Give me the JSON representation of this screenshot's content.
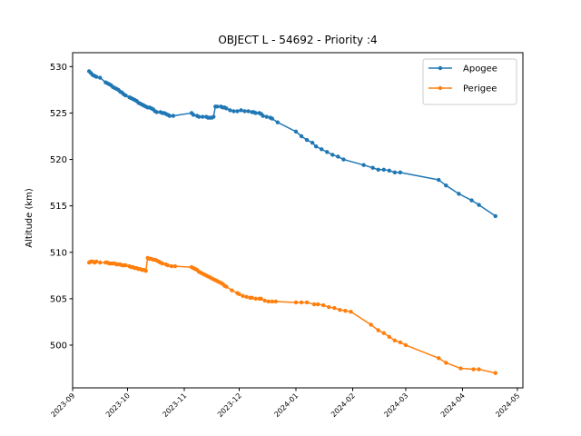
{
  "chart_data": {
    "type": "line",
    "title": "OBJECT L - 54692 - Priority :4",
    "xlabel": "",
    "ylabel": "Altitude (km)",
    "xlim": [
      "2023-09-01",
      "2024-05-04"
    ],
    "ylim": [
      495.4,
      531.5
    ],
    "x_ticks": [
      "2023-09",
      "2023-10",
      "2023-11",
      "2023-12",
      "2024-01",
      "2024-02",
      "2024-03",
      "2024-04",
      "2024-05"
    ],
    "y_ticks": [
      500,
      505,
      510,
      515,
      520,
      525,
      530
    ],
    "grid": false,
    "legend_position": "top-right",
    "series": [
      {
        "name": "Apogee",
        "color": "#1f77b4",
        "marker": "circle",
        "points": [
          [
            "2023-09-10",
            529.5
          ],
          [
            "2023-09-11",
            529.3
          ],
          [
            "2023-09-12",
            529.1
          ],
          [
            "2023-09-13",
            529.0
          ],
          [
            "2023-09-14",
            528.9
          ],
          [
            "2023-09-16",
            528.8
          ],
          [
            "2023-09-19",
            528.3
          ],
          [
            "2023-09-20",
            528.2
          ],
          [
            "2023-09-21",
            528.1
          ],
          [
            "2023-09-22",
            528.0
          ],
          [
            "2023-09-23",
            527.8
          ],
          [
            "2023-09-24",
            527.7
          ],
          [
            "2023-09-25",
            527.6
          ],
          [
            "2023-09-26",
            527.5
          ],
          [
            "2023-09-27",
            527.3
          ],
          [
            "2023-09-28",
            527.2
          ],
          [
            "2023-09-29",
            527.0
          ],
          [
            "2023-09-30",
            526.9
          ],
          [
            "2023-10-02",
            526.7
          ],
          [
            "2023-10-03",
            526.6
          ],
          [
            "2023-10-04",
            526.5
          ],
          [
            "2023-10-05",
            526.4
          ],
          [
            "2023-10-06",
            526.3
          ],
          [
            "2023-10-07",
            526.1
          ],
          [
            "2023-10-08",
            526.0
          ],
          [
            "2023-10-09",
            525.9
          ],
          [
            "2023-10-10",
            525.8
          ],
          [
            "2023-10-11",
            525.7
          ],
          [
            "2023-10-12",
            525.6
          ],
          [
            "2023-10-13",
            525.6
          ],
          [
            "2023-10-14",
            525.5
          ],
          [
            "2023-10-15",
            525.4
          ],
          [
            "2023-10-16",
            525.2
          ],
          [
            "2023-10-17",
            525.1
          ],
          [
            "2023-10-19",
            525.1
          ],
          [
            "2023-10-20",
            525.0
          ],
          [
            "2023-10-21",
            525.0
          ],
          [
            "2023-10-22",
            524.9
          ],
          [
            "2023-10-23",
            524.8
          ],
          [
            "2023-10-24",
            524.7
          ],
          [
            "2023-10-26",
            524.7
          ],
          [
            "2023-11-05",
            525.0
          ],
          [
            "2023-11-06",
            524.8
          ],
          [
            "2023-11-08",
            524.7
          ],
          [
            "2023-11-09",
            524.6
          ],
          [
            "2023-11-11",
            524.6
          ],
          [
            "2023-11-13",
            524.6
          ],
          [
            "2023-11-14",
            524.5
          ],
          [
            "2023-11-15",
            524.5
          ],
          [
            "2023-11-16",
            524.5
          ],
          [
            "2023-11-17",
            524.6
          ],
          [
            "2023-11-18",
            525.7
          ],
          [
            "2023-11-19",
            525.7
          ],
          [
            "2023-11-21",
            525.7
          ],
          [
            "2023-11-22",
            525.6
          ],
          [
            "2023-11-23",
            525.6
          ],
          [
            "2023-11-24",
            525.5
          ],
          [
            "2023-11-26",
            525.3
          ],
          [
            "2023-11-28",
            525.2
          ],
          [
            "2023-11-30",
            525.2
          ],
          [
            "2023-12-02",
            525.3
          ],
          [
            "2023-12-04",
            525.2
          ],
          [
            "2023-12-06",
            525.2
          ],
          [
            "2023-12-08",
            525.1
          ],
          [
            "2023-12-09",
            525.1
          ],
          [
            "2023-12-10",
            525.0
          ],
          [
            "2023-12-12",
            525.0
          ],
          [
            "2023-12-13",
            524.9
          ],
          [
            "2023-12-14",
            524.7
          ],
          [
            "2023-12-16",
            524.6
          ],
          [
            "2023-12-18",
            524.5
          ],
          [
            "2023-12-19",
            524.4
          ],
          [
            "2023-12-22",
            524.0
          ],
          [
            "2024-01-01",
            523.0
          ],
          [
            "2024-01-04",
            522.5
          ],
          [
            "2024-01-07",
            522.1
          ],
          [
            "2024-01-10",
            521.8
          ],
          [
            "2024-01-12",
            521.4
          ],
          [
            "2024-01-15",
            521.1
          ],
          [
            "2024-01-18",
            520.8
          ],
          [
            "2024-01-21",
            520.5
          ],
          [
            "2024-01-24",
            520.3
          ],
          [
            "2024-01-27",
            520.0
          ],
          [
            "2024-02-07",
            519.4
          ],
          [
            "2024-02-12",
            519.1
          ],
          [
            "2024-02-15",
            518.9
          ],
          [
            "2024-02-18",
            518.9
          ],
          [
            "2024-02-21",
            518.8
          ],
          [
            "2024-02-24",
            518.6
          ],
          [
            "2024-02-27",
            518.6
          ],
          [
            "2024-03-19",
            517.8
          ],
          [
            "2024-03-23",
            517.2
          ],
          [
            "2024-03-30",
            516.3
          ],
          [
            "2024-04-06",
            515.6
          ],
          [
            "2024-04-10",
            515.1
          ],
          [
            "2024-04-19",
            513.9
          ]
        ]
      },
      {
        "name": "Perigee",
        "color": "#ff7f0e",
        "marker": "circle",
        "points": [
          [
            "2023-09-10",
            508.9
          ],
          [
            "2023-09-11",
            509.0
          ],
          [
            "2023-09-12",
            509.0
          ],
          [
            "2023-09-13",
            508.9
          ],
          [
            "2023-09-14",
            509.0
          ],
          [
            "2023-09-16",
            508.9
          ],
          [
            "2023-09-19",
            508.9
          ],
          [
            "2023-09-20",
            508.9
          ],
          [
            "2023-09-21",
            508.8
          ],
          [
            "2023-09-22",
            508.8
          ],
          [
            "2023-09-23",
            508.8
          ],
          [
            "2023-09-24",
            508.8
          ],
          [
            "2023-09-25",
            508.7
          ],
          [
            "2023-09-26",
            508.7
          ],
          [
            "2023-09-27",
            508.7
          ],
          [
            "2023-09-28",
            508.6
          ],
          [
            "2023-09-29",
            508.6
          ],
          [
            "2023-09-30",
            508.6
          ],
          [
            "2023-10-02",
            508.5
          ],
          [
            "2023-10-03",
            508.4
          ],
          [
            "2023-10-04",
            508.4
          ],
          [
            "2023-10-05",
            508.3
          ],
          [
            "2023-10-06",
            508.3
          ],
          [
            "2023-10-07",
            508.2
          ],
          [
            "2023-10-08",
            508.2
          ],
          [
            "2023-10-09",
            508.1
          ],
          [
            "2023-10-10",
            508.1
          ],
          [
            "2023-10-11",
            508.0
          ],
          [
            "2023-10-12",
            509.4
          ],
          [
            "2023-10-13",
            509.3
          ],
          [
            "2023-10-14",
            509.3
          ],
          [
            "2023-10-15",
            509.2
          ],
          [
            "2023-10-16",
            509.2
          ],
          [
            "2023-10-17",
            509.1
          ],
          [
            "2023-10-18",
            509.0
          ],
          [
            "2023-10-19",
            508.9
          ],
          [
            "2023-10-20",
            508.8
          ],
          [
            "2023-10-22",
            508.7
          ],
          [
            "2023-10-23",
            508.6
          ],
          [
            "2023-10-25",
            508.5
          ],
          [
            "2023-10-27",
            508.5
          ],
          [
            "2023-11-05",
            508.4
          ],
          [
            "2023-11-06",
            508.3
          ],
          [
            "2023-11-07",
            508.2
          ],
          [
            "2023-11-08",
            508.1
          ],
          [
            "2023-11-09",
            507.9
          ],
          [
            "2023-11-10",
            507.8
          ],
          [
            "2023-11-11",
            507.7
          ],
          [
            "2023-11-12",
            507.6
          ],
          [
            "2023-11-13",
            507.5
          ],
          [
            "2023-11-14",
            507.4
          ],
          [
            "2023-11-15",
            507.3
          ],
          [
            "2023-11-16",
            507.2
          ],
          [
            "2023-11-17",
            507.1
          ],
          [
            "2023-11-18",
            507.0
          ],
          [
            "2023-11-19",
            506.9
          ],
          [
            "2023-11-20",
            506.8
          ],
          [
            "2023-11-21",
            506.7
          ],
          [
            "2023-11-22",
            506.6
          ],
          [
            "2023-11-23",
            506.4
          ],
          [
            "2023-11-24",
            506.3
          ],
          [
            "2023-11-27",
            505.9
          ],
          [
            "2023-11-30",
            505.6
          ],
          [
            "2023-12-01",
            505.5
          ],
          [
            "2023-12-03",
            505.3
          ],
          [
            "2023-12-05",
            505.2
          ],
          [
            "2023-12-07",
            505.1
          ],
          [
            "2023-12-08",
            505.1
          ],
          [
            "2023-12-10",
            505.0
          ],
          [
            "2023-12-12",
            505.0
          ],
          [
            "2023-12-13",
            505.0
          ],
          [
            "2023-12-15",
            504.8
          ],
          [
            "2023-12-17",
            504.7
          ],
          [
            "2023-12-19",
            504.7
          ],
          [
            "2023-12-21",
            504.7
          ],
          [
            "2024-01-01",
            504.6
          ],
          [
            "2024-01-04",
            504.6
          ],
          [
            "2024-01-07",
            504.6
          ],
          [
            "2024-01-11",
            504.4
          ],
          [
            "2024-01-13",
            504.4
          ],
          [
            "2024-01-16",
            504.3
          ],
          [
            "2024-01-19",
            504.1
          ],
          [
            "2024-01-22",
            504.0
          ],
          [
            "2024-01-25",
            503.8
          ],
          [
            "2024-01-28",
            503.7
          ],
          [
            "2024-01-31",
            503.6
          ],
          [
            "2024-02-11",
            502.2
          ],
          [
            "2024-02-15",
            501.6
          ],
          [
            "2024-02-18",
            501.3
          ],
          [
            "2024-02-21",
            500.9
          ],
          [
            "2024-02-24",
            500.5
          ],
          [
            "2024-02-27",
            500.3
          ],
          [
            "2024-03-01",
            500.0
          ],
          [
            "2024-03-19",
            498.6
          ],
          [
            "2024-03-23",
            498.1
          ],
          [
            "2024-03-31",
            497.5
          ],
          [
            "2024-04-07",
            497.4
          ],
          [
            "2024-04-10",
            497.4
          ],
          [
            "2024-04-19",
            497.0
          ]
        ]
      }
    ]
  }
}
